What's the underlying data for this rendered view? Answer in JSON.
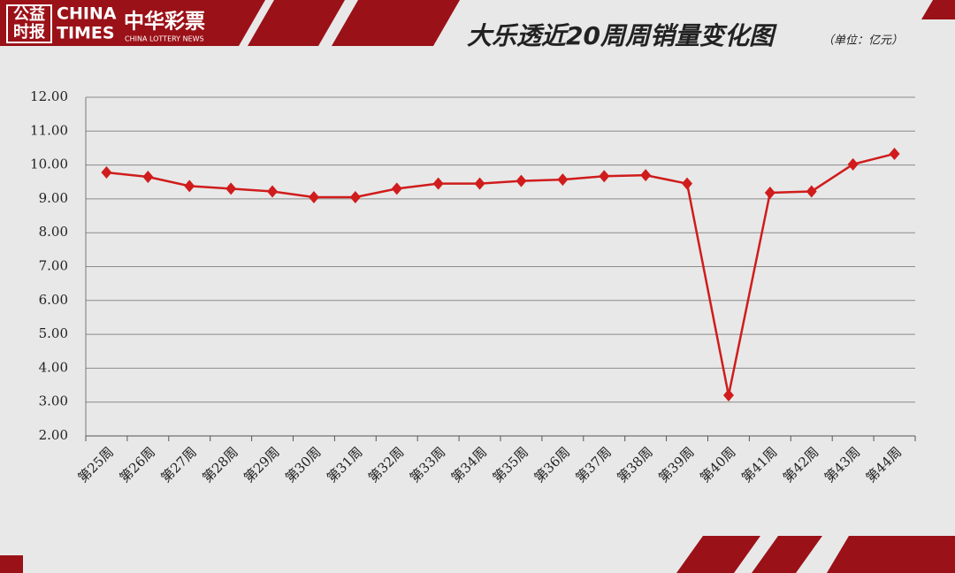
{
  "branding": {
    "seal": [
      "公益",
      "时报"
    ],
    "name_en": [
      "CHINA",
      "TIMES"
    ],
    "partner_cn": "中华彩票",
    "partner_en": "CHINA LOTTERY NEWS"
  },
  "chart_data": {
    "type": "line",
    "title": "大乐透近20周周销量变化图",
    "subtitle": "（单位：亿元）",
    "categories": [
      "第25周",
      "第26周",
      "第27周",
      "第28周",
      "第29周",
      "第30周",
      "第31周",
      "第32周",
      "第33周",
      "第34周",
      "第35周",
      "第36周",
      "第37周",
      "第38周",
      "第39周",
      "第40周",
      "第41周",
      "第42周",
      "第43周",
      "第44周"
    ],
    "values": [
      9.78,
      9.65,
      9.38,
      9.3,
      9.22,
      9.05,
      9.05,
      9.3,
      9.45,
      9.45,
      9.53,
      9.57,
      9.67,
      9.7,
      9.45,
      3.2,
      9.18,
      9.22,
      10.02,
      10.33
    ],
    "color": "#d01c1c",
    "ylim": [
      2,
      12
    ],
    "yticks": [
      {
        "value": 2,
        "label": "2.00"
      },
      {
        "value": 3,
        "label": "3.00"
      },
      {
        "value": 4,
        "label": "4.00"
      },
      {
        "value": 5,
        "label": "5.00"
      },
      {
        "value": 6,
        "label": "6.00"
      },
      {
        "value": 7,
        "label": "7.00"
      },
      {
        "value": 8,
        "label": "8.00"
      },
      {
        "value": 9,
        "label": "9.00"
      },
      {
        "value": 10,
        "label": "10.00"
      },
      {
        "value": 11,
        "label": "11.00"
      },
      {
        "value": 12,
        "label": "12.00"
      }
    ],
    "grid": true
  }
}
